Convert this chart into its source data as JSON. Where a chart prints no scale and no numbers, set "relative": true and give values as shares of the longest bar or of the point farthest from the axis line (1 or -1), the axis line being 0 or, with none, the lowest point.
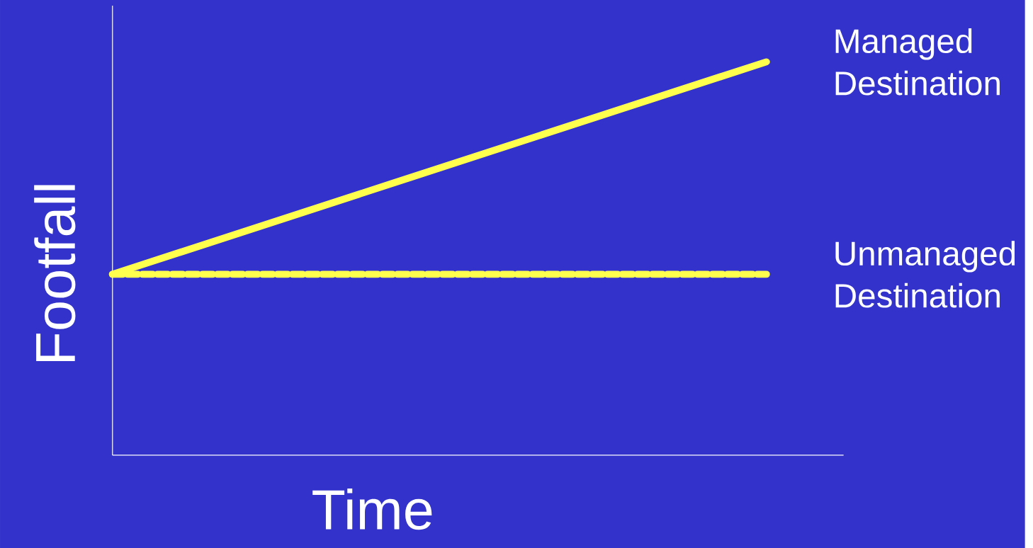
{
  "chart_data": {
    "type": "line",
    "relative": true,
    "xlabel": "Time",
    "ylabel": "Footfall",
    "categories": [
      null,
      null
    ],
    "series": [
      {
        "name": "Managed Destination",
        "color": "#ffff4d",
        "line_style": "solid",
        "values": [
          0.46,
          1
        ]
      },
      {
        "name": "Unmanaged Destination",
        "color": "#ffff4d",
        "line_style": "dashed",
        "values": [
          0.46,
          0.46
        ]
      }
    ]
  }
}
